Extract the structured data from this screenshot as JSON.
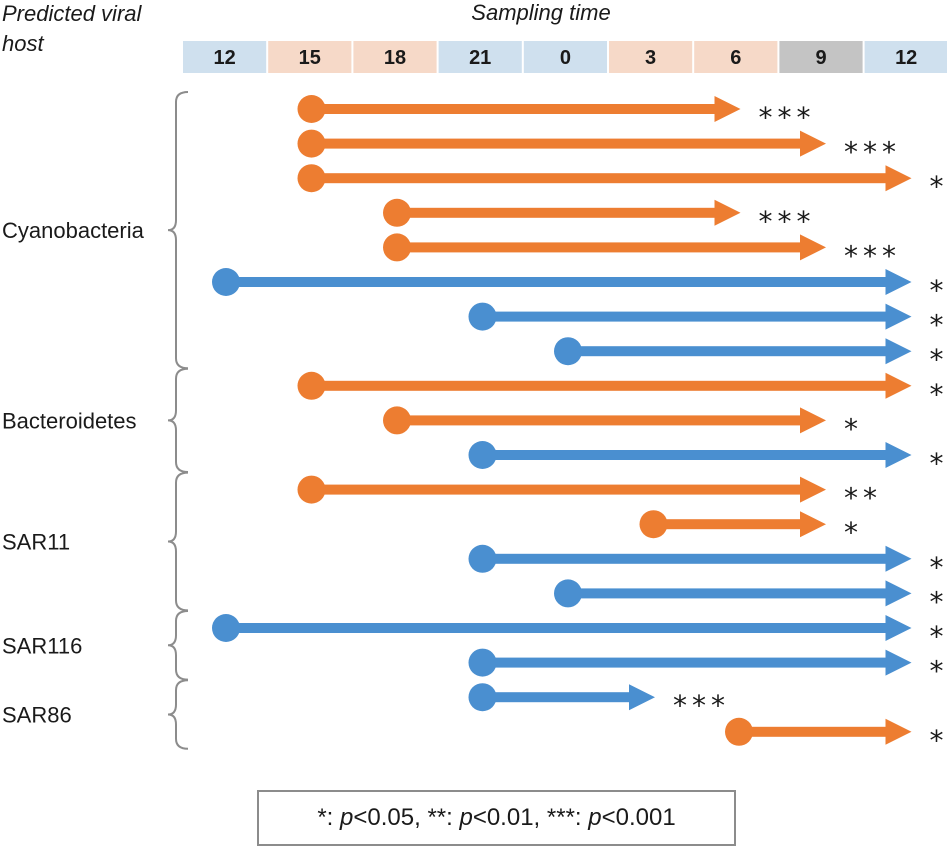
{
  "header": {
    "host_title_line1": "Predicted viral",
    "host_title_line2": "host",
    "time_title": "Sampling time"
  },
  "times": [
    {
      "label": "12",
      "phase": "night"
    },
    {
      "label": "15",
      "phase": "day"
    },
    {
      "label": "18",
      "phase": "day"
    },
    {
      "label": "21",
      "phase": "night"
    },
    {
      "label": "0",
      "phase": "night"
    },
    {
      "label": "3",
      "phase": "day"
    },
    {
      "label": "6",
      "phase": "day"
    },
    {
      "label": "9",
      "phase": "missing"
    },
    {
      "label": "12",
      "phase": "night"
    }
  ],
  "colors": {
    "night_cell": "#cfe0ee",
    "day_cell": "#f6d9c8",
    "missing_cell": "#c4c4c4",
    "orange": "#ed7d31",
    "blue": "#4a8fd0",
    "bracket": "#8c8c8c"
  },
  "hosts": [
    {
      "name": "Cyanobacteria",
      "first_row": 0,
      "last_row": 7
    },
    {
      "name": "Bacteroidetes",
      "first_row": 8,
      "last_row": 10
    },
    {
      "name": "SAR11",
      "first_row": 11,
      "last_row": 14
    },
    {
      "name": "SAR116",
      "first_row": 15,
      "last_row": 16
    },
    {
      "name": "SAR86",
      "first_row": 17,
      "last_row": 18
    }
  ],
  "arrows": [
    {
      "color": "orange",
      "start": 1,
      "end": 5,
      "sig": "***"
    },
    {
      "color": "orange",
      "start": 1,
      "end": 6,
      "sig": "***"
    },
    {
      "color": "orange",
      "start": 1,
      "end": 7,
      "sig": "***"
    },
    {
      "color": "orange",
      "start": 2,
      "end": 5,
      "sig": "***"
    },
    {
      "color": "orange",
      "start": 2,
      "end": 6,
      "sig": "***"
    },
    {
      "color": "blue",
      "start": 0,
      "end": 7,
      "sig": "*"
    },
    {
      "color": "blue",
      "start": 3,
      "end": 7,
      "sig": "***"
    },
    {
      "color": "blue",
      "start": 4,
      "end": 7,
      "sig": "***"
    },
    {
      "color": "orange",
      "start": 1,
      "end": 7,
      "sig": "*"
    },
    {
      "color": "orange",
      "start": 2,
      "end": 6,
      "sig": "*"
    },
    {
      "color": "blue",
      "start": 3,
      "end": 7,
      "sig": "*"
    },
    {
      "color": "orange",
      "start": 1,
      "end": 6,
      "sig": "**"
    },
    {
      "color": "orange",
      "start": 5,
      "end": 6,
      "sig": "*"
    },
    {
      "color": "blue",
      "start": 3,
      "end": 7,
      "sig": "**"
    },
    {
      "color": "blue",
      "start": 4,
      "end": 7,
      "sig": "*"
    },
    {
      "color": "blue",
      "start": 0,
      "end": 7,
      "sig": "*"
    },
    {
      "color": "blue",
      "start": 3,
      "end": 7,
      "sig": "*"
    },
    {
      "color": "blue",
      "start": 3,
      "end": 4,
      "sig": "***"
    },
    {
      "color": "orange",
      "start": 6,
      "end": 7,
      "sig": "*"
    }
  ],
  "legend": {
    "part1_pre": "*: ",
    "part1_p": "p",
    "part1_post": "<0.05, ",
    "part2_pre": "**: ",
    "part2_p": "p",
    "part2_post": "<0.01, ",
    "part3_pre": "***: ",
    "part3_p": "p",
    "part3_post": "<0.001"
  }
}
